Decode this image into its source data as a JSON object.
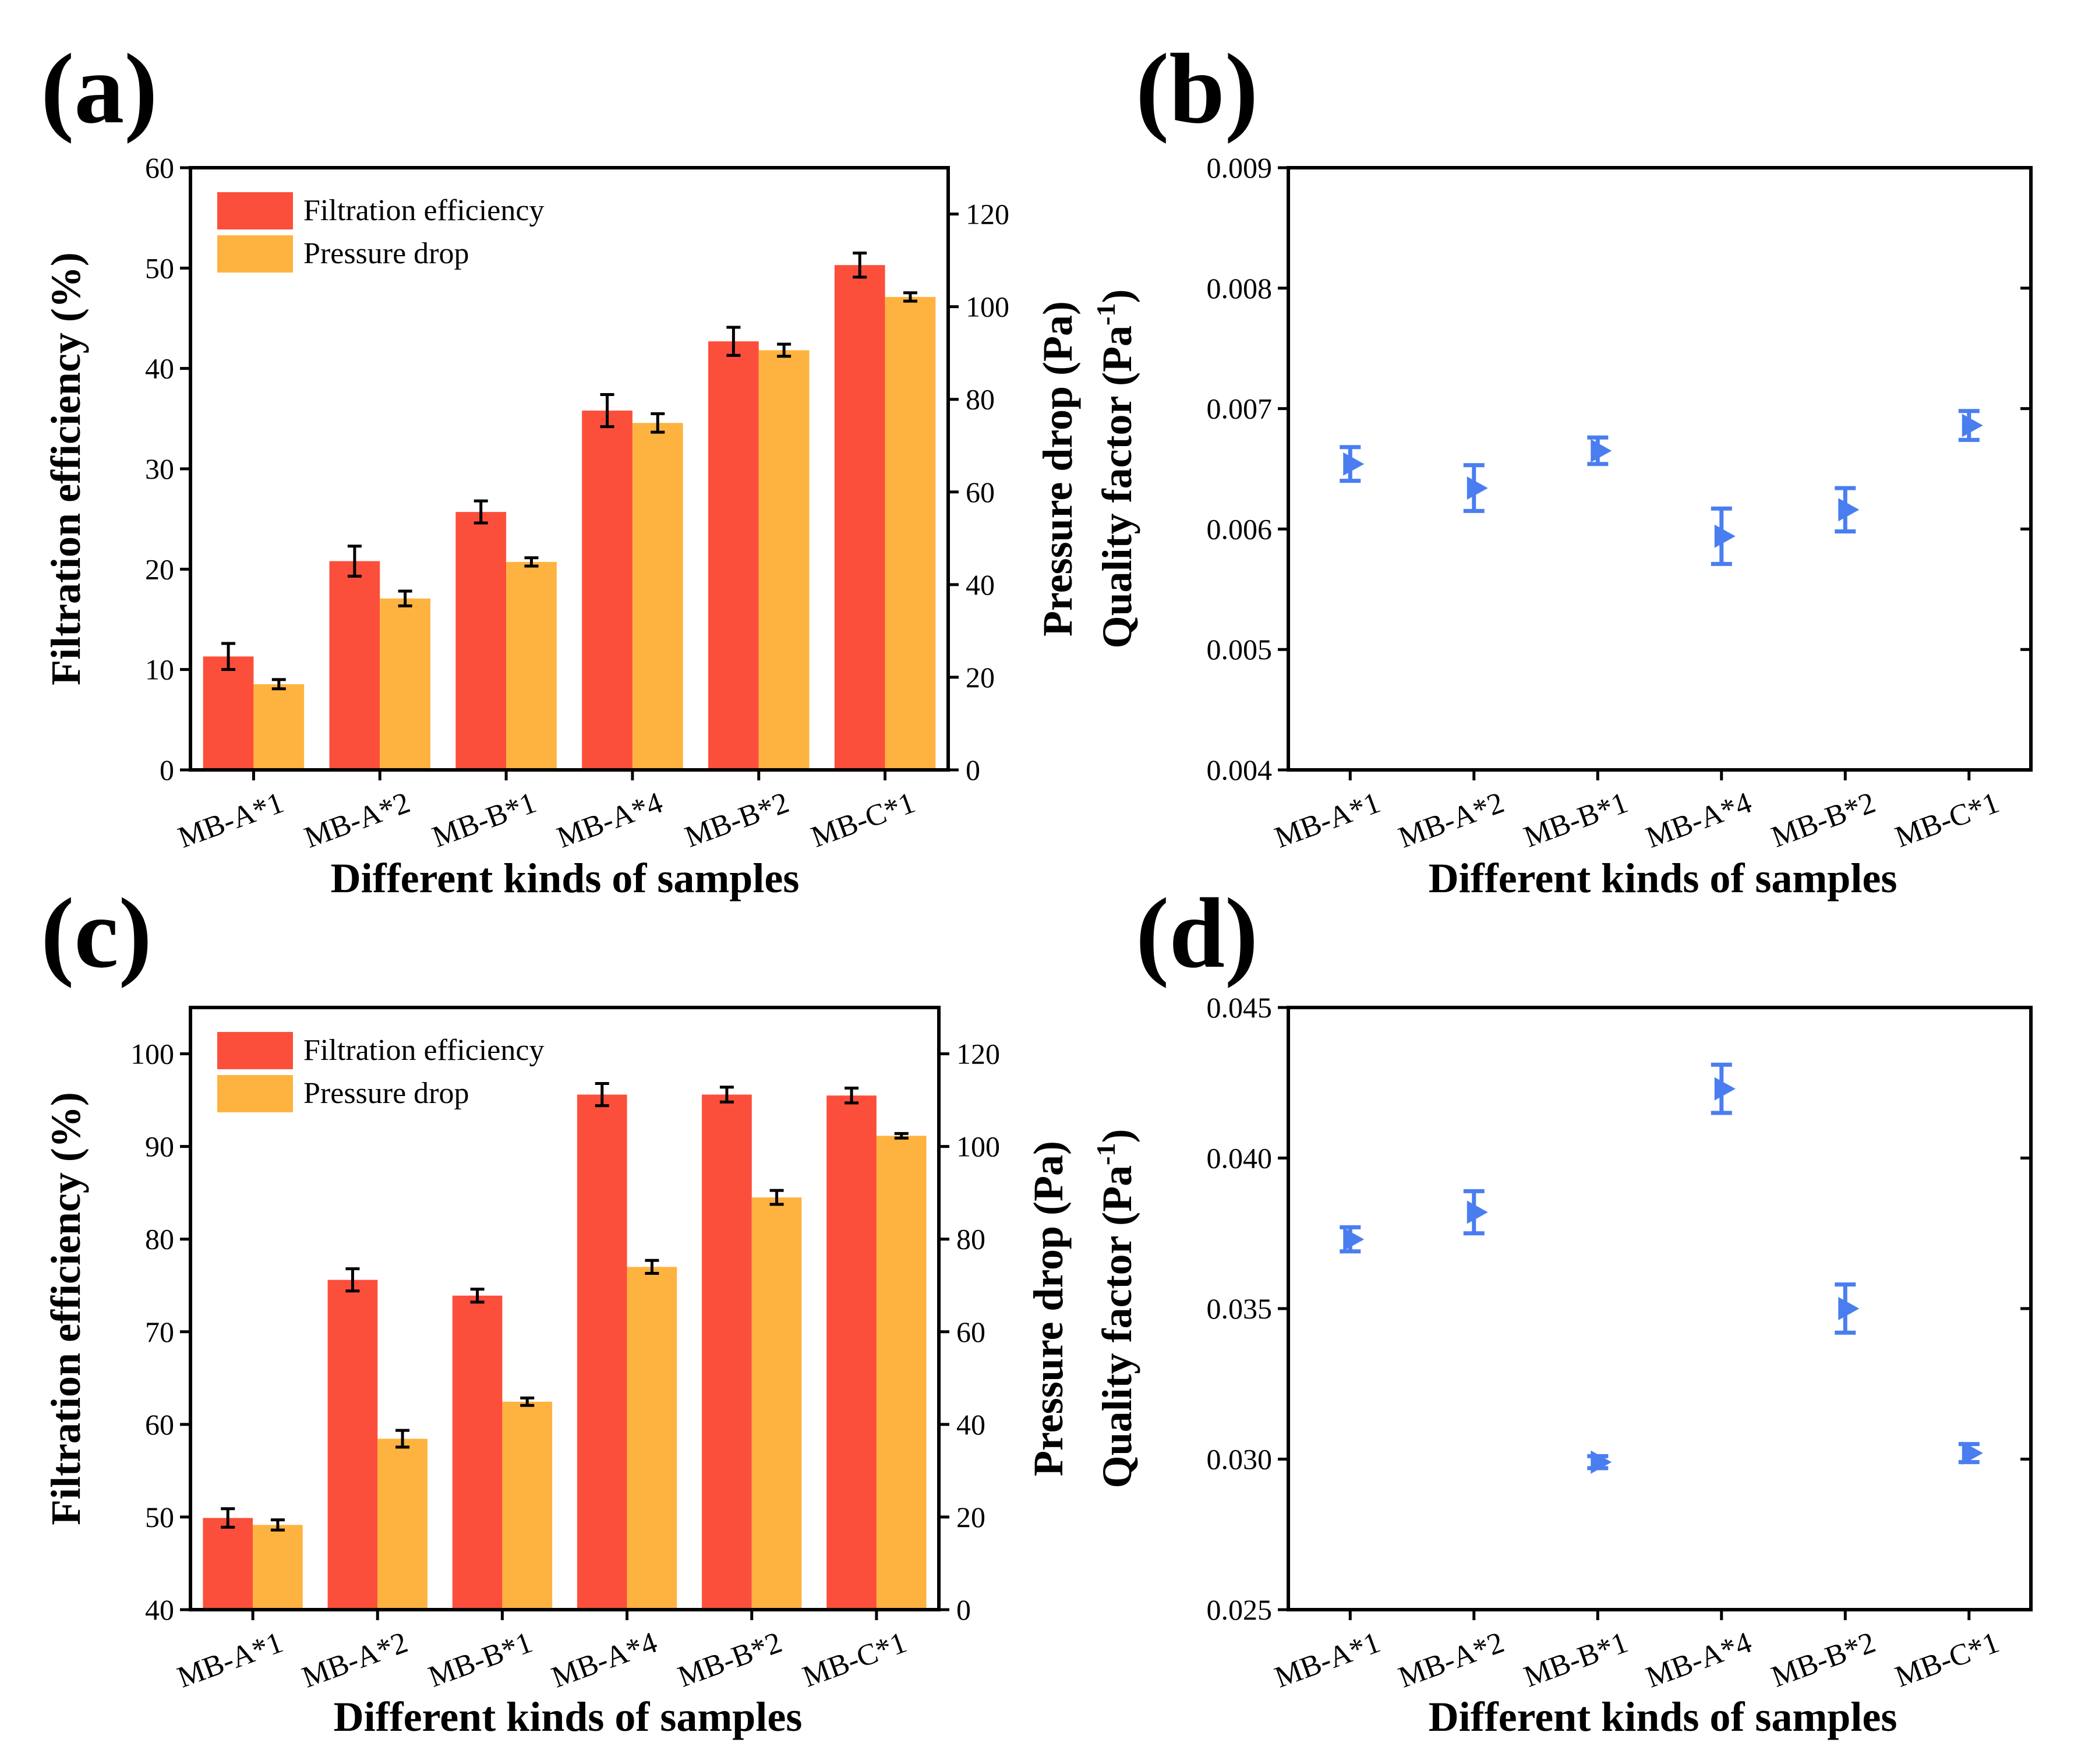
{
  "colors": {
    "filtration": "#fc4f3b",
    "pressure": "#feb340",
    "quality": "#4a7ef0",
    "axis": "#000000"
  },
  "chart_data": [
    {
      "panel": "(a)",
      "type": "bar",
      "categories": [
        "MB-A*1",
        "MB-A*2",
        "MB-B*1",
        "MB-A*4",
        "MB-B*2",
        "MB-C*1"
      ],
      "xlabel": "Different kinds of samples",
      "ylabel": "Filtration efficiency (%)",
      "ylabel_right": "Pressure drop (Pa)",
      "ylim": [
        0,
        60
      ],
      "yticks": [
        0,
        10,
        20,
        30,
        40,
        50,
        60
      ],
      "ylim_right": [
        0,
        130
      ],
      "yticks_right": [
        0,
        20,
        40,
        60,
        80,
        100,
        120
      ],
      "legend": [
        "Filtration efficiency",
        "Pressure drop"
      ],
      "series": [
        {
          "name": "Filtration efficiency",
          "axis": "left",
          "values": [
            11.3,
            20.8,
            25.7,
            35.8,
            42.7,
            50.3
          ],
          "errors": [
            1.3,
            1.5,
            1.1,
            1.6,
            1.4,
            1.2
          ]
        },
        {
          "name": "Pressure drop",
          "axis": "right",
          "values": [
            18.5,
            37.0,
            44.9,
            74.9,
            90.6,
            102.1
          ],
          "errors": [
            1.0,
            1.6,
            0.9,
            2.0,
            1.3,
            0.9
          ]
        }
      ]
    },
    {
      "panel": "(b)",
      "type": "scatter",
      "categories": [
        "MB-A*1",
        "MB-A*2",
        "MB-B*1",
        "MB-A*4",
        "MB-B*2",
        "MB-C*1"
      ],
      "xlabel": "Different kinds of samples",
      "ylabel": "Quality factor (Pa",
      "ylabel_sup": "-1",
      "ylabel_tail": ")",
      "ylim": [
        0.004,
        0.009
      ],
      "yticks": [
        "0.004",
        "0.005",
        "0.006",
        "0.007",
        "0.008",
        "0.009"
      ],
      "series": [
        {
          "name": "Quality factor",
          "values": [
            0.00654,
            0.00634,
            0.00665,
            0.00594,
            0.00616,
            0.00686
          ],
          "errors": [
            0.00014,
            0.00019,
            0.00011,
            0.00023,
            0.00018,
            0.00012
          ]
        }
      ]
    },
    {
      "panel": "(c)",
      "type": "bar",
      "categories": [
        "MB-A*1",
        "MB-A*2",
        "MB-B*1",
        "MB-A*4",
        "MB-B*2",
        "MB-C*1"
      ],
      "xlabel": "Different kinds of samples",
      "ylabel": "Filtration efficiency (%)",
      "ylabel_right": "Pressure drop (Pa)",
      "ylim": [
        40,
        105
      ],
      "yticks": [
        40,
        50,
        60,
        70,
        80,
        90,
        100
      ],
      "ylim_right": [
        0,
        130
      ],
      "yticks_right": [
        0,
        20,
        40,
        60,
        80,
        100,
        120
      ],
      "legend": [
        "Filtration efficiency",
        "Pressure drop"
      ],
      "series": [
        {
          "name": "Filtration efficiency",
          "axis": "left",
          "values": [
            49.9,
            75.6,
            73.9,
            95.6,
            95.6,
            95.5
          ],
          "errors": [
            1.0,
            1.2,
            0.7,
            1.2,
            0.8,
            0.8
          ]
        },
        {
          "name": "Pressure drop",
          "axis": "right",
          "values": [
            18.3,
            36.9,
            44.9,
            74.0,
            89.0,
            102.3
          ],
          "errors": [
            1.1,
            1.8,
            0.8,
            1.4,
            1.5,
            0.5
          ]
        }
      ]
    },
    {
      "panel": "(d)",
      "type": "scatter",
      "categories": [
        "MB-A*1",
        "MB-A*2",
        "MB-B*1",
        "MB-A*4",
        "MB-B*2",
        "MB-C*1"
      ],
      "xlabel": "Different kinds of samples",
      "ylabel": "Quality factor (Pa",
      "ylabel_sup": "-1",
      "ylabel_tail": ")",
      "ylim": [
        0.025,
        0.045
      ],
      "yticks": [
        "0.025",
        "0.030",
        "0.035",
        "0.040",
        "0.045"
      ],
      "series": [
        {
          "name": "Quality factor",
          "values": [
            0.0373,
            0.0382,
            0.0299,
            0.0423,
            0.035,
            0.0302
          ],
          "errors": [
            0.0004,
            0.0007,
            0.0002,
            0.0008,
            0.0008,
            0.0003
          ]
        }
      ]
    }
  ]
}
